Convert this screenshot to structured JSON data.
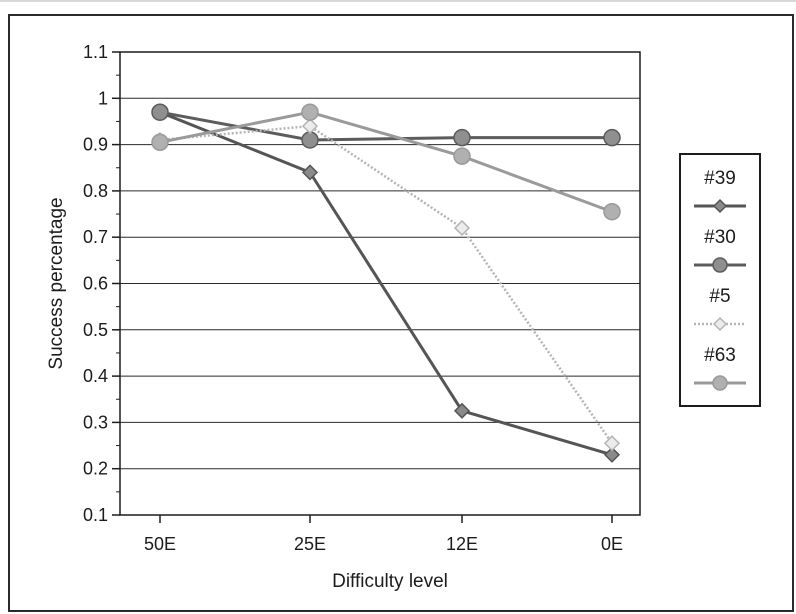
{
  "chart_data": {
    "type": "line",
    "xlabel": "Difficulty level",
    "ylabel": "Success percentage",
    "categories": [
      "50E",
      "25E",
      "12E",
      "0E"
    ],
    "ylim": [
      0.1,
      1.1
    ],
    "yticks": [
      "0.1",
      "0.2",
      "0.3",
      "0.4",
      "0.5",
      "0.6",
      "0.7",
      "0.8",
      "0.9",
      "1",
      "1.1"
    ],
    "grid": "horizontal",
    "legend_position": "right",
    "series": [
      {
        "name": "#39",
        "values": [
          0.97,
          0.84,
          0.325,
          0.23
        ],
        "marker": "diamond",
        "color": "#555555",
        "fill": "#8a8a8a",
        "dashed": false
      },
      {
        "name": "#30",
        "values": [
          0.97,
          0.91,
          0.915,
          0.915
        ],
        "marker": "circle",
        "color": "#5c5c5c",
        "fill": "#8f8f8f",
        "dashed": false
      },
      {
        "name": "#5",
        "values": [
          0.91,
          0.94,
          0.72,
          0.255
        ],
        "marker": "diamond",
        "color": "#b5b5b5",
        "fill": "#ececec",
        "dashed": true
      },
      {
        "name": "#63",
        "values": [
          0.905,
          0.97,
          0.875,
          0.755
        ],
        "marker": "circle",
        "color": "#9a9a9a",
        "fill": "#b0b0b0",
        "dashed": false
      }
    ]
  }
}
